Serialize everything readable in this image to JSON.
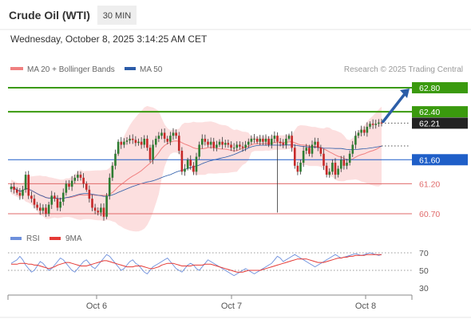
{
  "header": {
    "title": "Crude Oil (WTI)",
    "timeframe": "30 MIN",
    "datetime": "Wednesday, October 8, 2025 3:14:25 AM CET"
  },
  "legend": {
    "ma20_label": "MA 20 + Bollinger Bands",
    "ma50_label": "MA 50",
    "credit": "Research © 2025 Trading Central"
  },
  "colors": {
    "bull": "#2e7d32",
    "bear": "#c62828",
    "ma20": "#f08080",
    "ma50": "#2b5ba8",
    "band_fill": "#fbd4d4",
    "target_green": "#3a9a0e",
    "pivot_blue": "#1f5fc8",
    "support_red": "#e06a6a",
    "last_price_bg": "#222222",
    "arrow": "#2c5ea8",
    "rsi_line": "#6d8fdc",
    "rsi_ma": "#e53935"
  },
  "chart_data": [
    {
      "type": "candlestick",
      "title": "Crude Oil (WTI)",
      "timeframe": "30 MIN",
      "x_ticks": [
        "Oct 6",
        "Oct 7",
        "Oct 8"
      ],
      "ylim": [
        60.5,
        63.0
      ],
      "levels": [
        {
          "value": 62.8,
          "label": "62.80",
          "kind": "target"
        },
        {
          "value": 62.4,
          "label": "62.40",
          "kind": "target"
        },
        {
          "value": 62.21,
          "label": "62.21",
          "kind": "last"
        },
        {
          "value": 61.6,
          "label": "61.60",
          "kind": "pivot"
        },
        {
          "value": 61.2,
          "label": "61.20",
          "kind": "support"
        },
        {
          "value": 60.7,
          "label": "60.70",
          "kind": "support"
        }
      ],
      "close": [
        61.15,
        61.1,
        61.05,
        61.0,
        61.1,
        61.35,
        61.0,
        60.95,
        60.85,
        60.8,
        60.75,
        60.8,
        60.7,
        60.85,
        61.0,
        60.95,
        60.8,
        60.9,
        61.05,
        61.2,
        61.15,
        61.25,
        61.3,
        61.35,
        61.3,
        61.2,
        61.1,
        60.95,
        60.8,
        60.75,
        60.72,
        60.8,
        60.65,
        61.0,
        61.3,
        61.5,
        61.7,
        61.9,
        61.85,
        61.9,
        61.92,
        61.95,
        61.93,
        61.88,
        61.9,
        61.85,
        61.95,
        61.8,
        61.6,
        61.85,
        61.95,
        62.0,
        62.05,
        61.95,
        61.9,
        62.0,
        62.05,
        62.0,
        61.75,
        61.4,
        61.45,
        61.6,
        61.5,
        61.4,
        61.65,
        61.85,
        61.95,
        61.9,
        61.85,
        61.9,
        61.8,
        61.85,
        61.9,
        61.85,
        61.88,
        61.85,
        61.8,
        61.8,
        61.85,
        61.82,
        61.8,
        61.85,
        61.9,
        61.95,
        61.95,
        61.9,
        61.95,
        61.9,
        61.95,
        61.85,
        61.95,
        62.0,
        61.9,
        61.88,
        61.85,
        61.95,
        62.0,
        61.8,
        61.5,
        61.4,
        61.55,
        61.75,
        61.8,
        61.7,
        61.85,
        61.9,
        61.8,
        61.7,
        61.5,
        61.35,
        61.4,
        61.55,
        61.35,
        61.45,
        61.6,
        61.5,
        61.55,
        61.7,
        61.85,
        62.0,
        62.05,
        62.1,
        62.05,
        62.15,
        62.2,
        62.18,
        62.2,
        62.22,
        62.21
      ],
      "rsi": {
        "name": "RSI",
        "ma_name": "9MA",
        "ylim": [
          20,
          80
        ],
        "ticks": [
          70,
          50,
          30
        ],
        "values": [
          58,
          60,
          62,
          66,
          62,
          56,
          52,
          48,
          50,
          55,
          60,
          58,
          54,
          50,
          52,
          56,
          60,
          64,
          62,
          58,
          54,
          50,
          48,
          52,
          56,
          60,
          62,
          58,
          54,
          52,
          56,
          60,
          64,
          68,
          66,
          62,
          58,
          54,
          50,
          52,
          56,
          60,
          62,
          58,
          56,
          52,
          48,
          46,
          50,
          54,
          56,
          58,
          60,
          62,
          64,
          60,
          56,
          52,
          50,
          48,
          52,
          56,
          58,
          56,
          52,
          50,
          54,
          58,
          62,
          60,
          58,
          56,
          54,
          52,
          50,
          48,
          46,
          44,
          46,
          48,
          50,
          52,
          50,
          48,
          46,
          48,
          50,
          52,
          54,
          56,
          58,
          62,
          66,
          64,
          60,
          62,
          64,
          66,
          68,
          66,
          64,
          62,
          60,
          58,
          56,
          54,
          56,
          58,
          60,
          62,
          64,
          66,
          68,
          66,
          64,
          65,
          66,
          67,
          68,
          69,
          68,
          67,
          68,
          69,
          70,
          69,
          68,
          67,
          68
        ],
        "ma": [
          57,
          57,
          57,
          58,
          58,
          58,
          57,
          57,
          56,
          56,
          55,
          54,
          53,
          52,
          53,
          54,
          56,
          57,
          58,
          59,
          59,
          58,
          57,
          56,
          55,
          55,
          55,
          56,
          57,
          58,
          59,
          60,
          61,
          61,
          60,
          59,
          58,
          57,
          56,
          55,
          54,
          54,
          54,
          55,
          55,
          55,
          54,
          53,
          52,
          52,
          53,
          54,
          56,
          57,
          58,
          58,
          58,
          57,
          56,
          55,
          55,
          55,
          55,
          56,
          56,
          56,
          56,
          57,
          57,
          57,
          56,
          55,
          54,
          53,
          52,
          51,
          50,
          49,
          48,
          48,
          48,
          49,
          50,
          50,
          50,
          50,
          50,
          51,
          52,
          53,
          54,
          55,
          56,
          57,
          58,
          59,
          60,
          61,
          62,
          63,
          63,
          63,
          63,
          62,
          61,
          60,
          59,
          59,
          59,
          60,
          61,
          62,
          63,
          64,
          64,
          65,
          65,
          66,
          66,
          67,
          67,
          67,
          67,
          68,
          68,
          68,
          68,
          68,
          68
        ]
      }
    }
  ]
}
